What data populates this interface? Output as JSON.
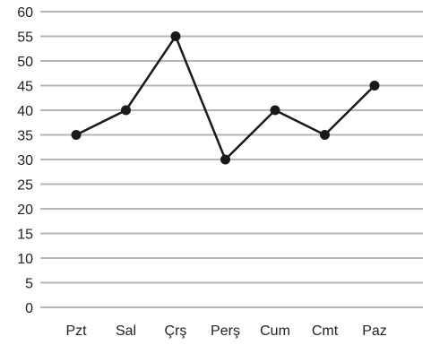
{
  "chart_data": {
    "type": "line",
    "categories": [
      "Pzt",
      "Sal",
      "Çrş",
      "Perş",
      "Cum",
      "Cmt",
      "Paz"
    ],
    "series": [
      {
        "values": [
          35,
          40,
          55,
          30,
          40,
          35,
          45
        ]
      }
    ],
    "y_ticks": [
      "0",
      "5",
      "10",
      "15",
      "20",
      "25",
      "30",
      "35",
      "40",
      "45",
      "50",
      "55",
      "60"
    ],
    "ylim": [
      0,
      60
    ],
    "grid": true,
    "colors": {
      "line": "#1a1a1a",
      "grid": "#b5b5b5",
      "text": "#222222"
    }
  }
}
